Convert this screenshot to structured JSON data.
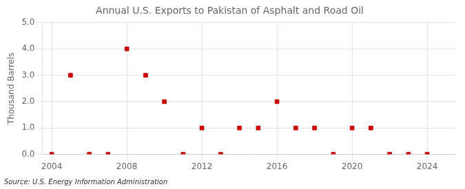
{
  "chart_data": {
    "type": "scatter",
    "title": "Annual U.S. Exports to Pakistan of Asphalt and Road Oil",
    "ylabel": "Thousand Barrels",
    "annotation": "Source: U.S. Energy Information Administration",
    "x": [
      2004,
      2005,
      2006,
      2007,
      2008,
      2009,
      2010,
      2011,
      2012,
      2013,
      2014,
      2015,
      2016,
      2017,
      2018,
      2019,
      2020,
      2021,
      2022,
      2023,
      2024
    ],
    "values": [
      0,
      3,
      0,
      0,
      4,
      3,
      2,
      0,
      1,
      0,
      1,
      1,
      2,
      1,
      1,
      0,
      1,
      1,
      0,
      0,
      0
    ],
    "color": "#cc0000",
    "marker": "square",
    "xlim": [
      2003.5,
      2025.5
    ],
    "xticks": [
      2004,
      2008,
      2012,
      2016,
      2020,
      2024
    ],
    "ylim": [
      0.0,
      5.0
    ],
    "yticks": [
      {
        "value": 0,
        "label": "0.0"
      },
      {
        "value": 1,
        "label": "1.0"
      },
      {
        "value": 2,
        "label": "2.0"
      },
      {
        "value": 3,
        "label": "3.0"
      },
      {
        "value": 4,
        "label": "4.0"
      },
      {
        "value": 5,
        "label": "5.0"
      }
    ],
    "grid": true
  }
}
